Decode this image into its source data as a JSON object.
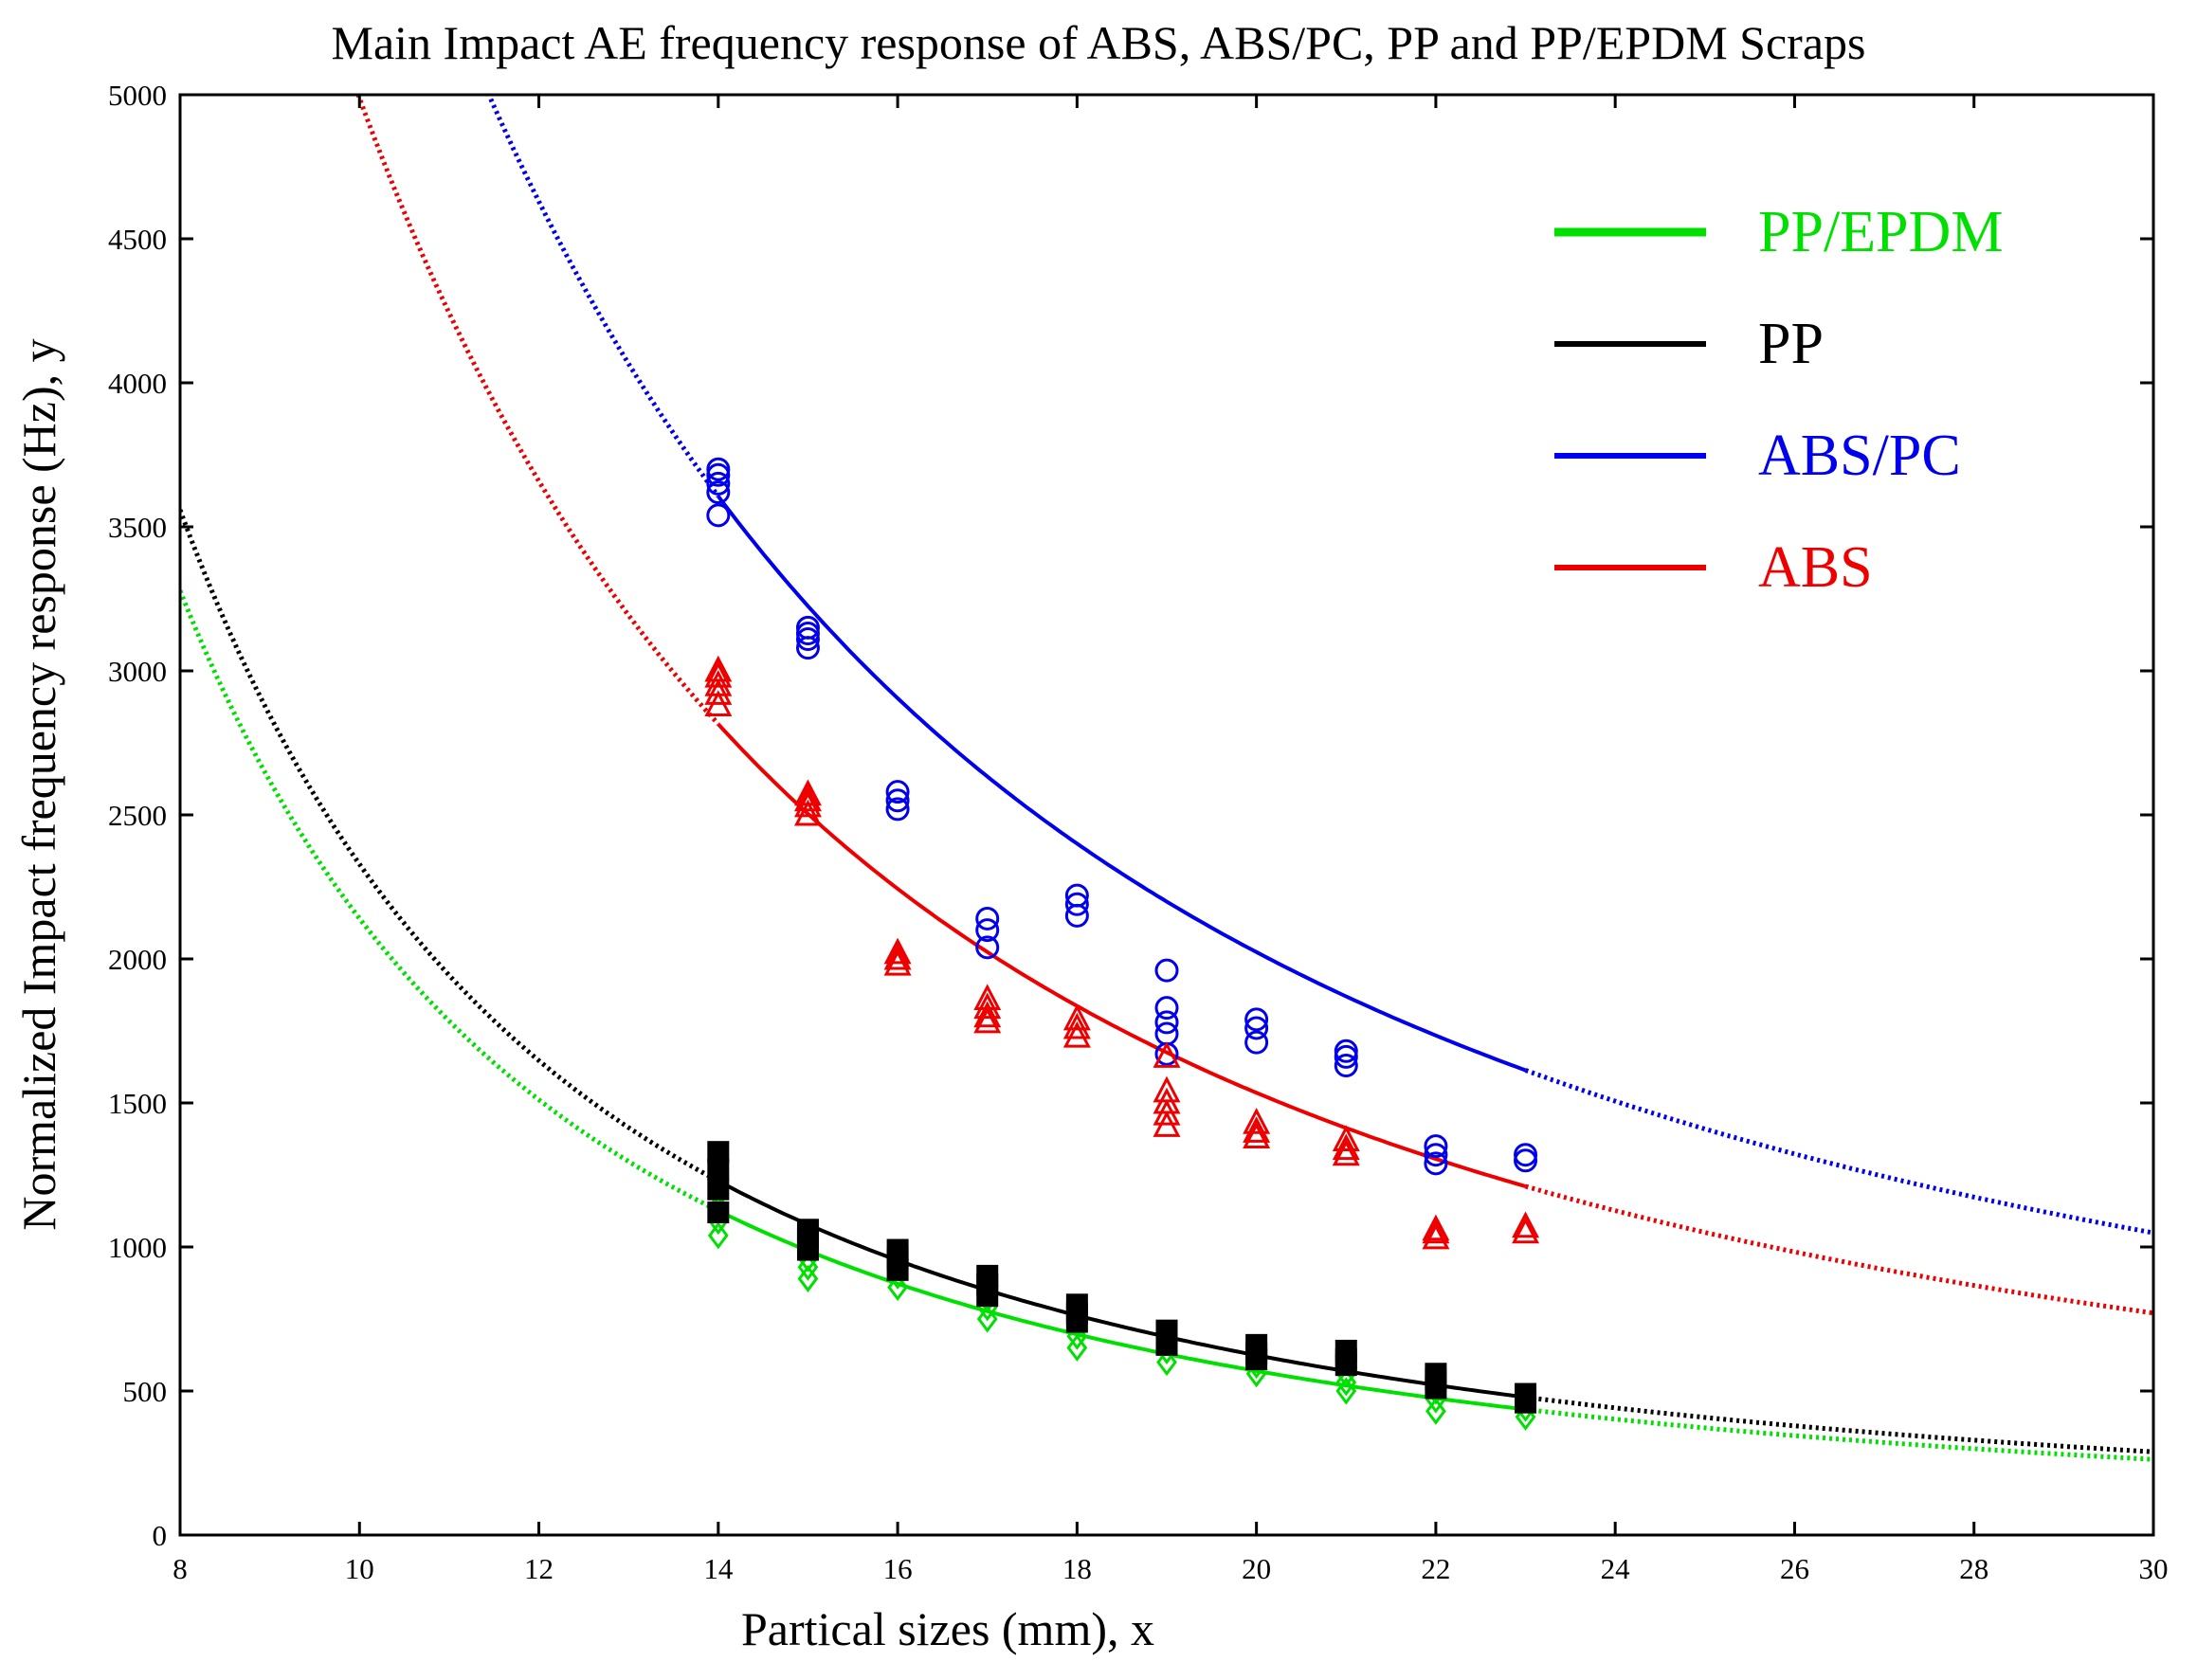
{
  "chart_data": {
    "type": "scatter",
    "title": "Main Impact AE frequency response of ABS, ABS/PC, PP and PP/EPDM Scraps",
    "xlabel": "Partical sizes (mm), x",
    "ylabel": "Normalized Impact frequency response (Hz), y",
    "xlim": [
      8,
      30
    ],
    "ylim": [
      0,
      5000
    ],
    "xticks": [
      8,
      10,
      12,
      14,
      16,
      18,
      20,
      22,
      24,
      26,
      28,
      30
    ],
    "yticks": [
      0,
      500,
      1000,
      1500,
      2000,
      2500,
      3000,
      3500,
      4000,
      4500,
      5000
    ],
    "xtick_labels": [
      "8",
      "10",
      "12",
      "14",
      "16",
      "18",
      "20",
      "22",
      "24",
      "26",
      "28",
      "30"
    ],
    "ytick_labels": [
      "0",
      "500",
      "1000",
      "1500",
      "2000",
      "2500",
      "3000",
      "3500",
      "4000",
      "4500",
      "5000"
    ],
    "legend_position": "top-right",
    "fit_range": [
      14,
      23
    ],
    "series": [
      {
        "name": "PP/EPDM",
        "color": "#00e000",
        "marker": "diamond",
        "fit": {
          "a": 174000,
          "b": 1.91
        },
        "x": [
          14,
          14,
          14,
          14,
          14,
          14,
          15,
          15,
          15,
          15,
          16,
          16,
          16,
          17,
          17,
          17,
          18,
          18,
          18,
          19,
          19,
          19,
          20,
          20,
          20,
          21,
          21,
          21,
          22,
          22,
          22,
          23,
          23
        ],
        "y": [
          1040,
          1090,
          1140,
          1190,
          1230,
          1260,
          890,
          930,
          960,
          1000,
          860,
          900,
          930,
          750,
          790,
          820,
          650,
          690,
          730,
          600,
          640,
          670,
          560,
          590,
          610,
          500,
          530,
          560,
          430,
          470,
          500,
          410,
          440
        ]
      },
      {
        "name": "PP",
        "color": "#000000",
        "marker": "square",
        "fit": {
          "a": 185000,
          "b": 1.9
        },
        "x": [
          14,
          14,
          14,
          14,
          15,
          15,
          15,
          16,
          16,
          16,
          17,
          17,
          17,
          18,
          18,
          18,
          19,
          19,
          19,
          20,
          20,
          20,
          21,
          21,
          21,
          22,
          22,
          22,
          23,
          23
        ],
        "y": [
          1120,
          1200,
          1270,
          1330,
          990,
          1030,
          1060,
          920,
          960,
          990,
          830,
          870,
          900,
          740,
          770,
          800,
          660,
          680,
          710,
          610,
          630,
          660,
          590,
          610,
          640,
          510,
          540,
          560,
          460,
          490
        ],
        "point_color": "#000000"
      },
      {
        "name": "ABS/PC",
        "color": "#0000ee",
        "marker": "circle",
        "fit": {
          "a": 259300,
          "b": 1.62
        },
        "x": [
          14,
          14,
          14,
          14,
          14,
          15,
          15,
          15,
          15,
          16,
          16,
          16,
          17,
          17,
          17,
          18,
          18,
          18,
          19,
          19,
          19,
          19,
          19,
          20,
          20,
          20,
          21,
          21,
          21,
          22,
          22,
          22,
          23,
          23
        ],
        "y": [
          3540,
          3620,
          3650,
          3680,
          3700,
          3080,
          3110,
          3130,
          3150,
          2520,
          2550,
          2580,
          2040,
          2100,
          2140,
          2150,
          2190,
          2220,
          1670,
          1740,
          1780,
          1830,
          1960,
          1710,
          1760,
          1790,
          1630,
          1660,
          1680,
          1290,
          1320,
          1350,
          1300,
          1320
        ]
      },
      {
        "name": "ABS",
        "color": "#ee0000",
        "marker": "triangle",
        "fit": {
          "a": 250000,
          "b": 1.7
        },
        "x": [
          14,
          14,
          14,
          14,
          14,
          15,
          15,
          15,
          15,
          16,
          16,
          16,
          17,
          17,
          17,
          17,
          18,
          18,
          18,
          19,
          19,
          19,
          19,
          19,
          20,
          20,
          20,
          21,
          21,
          21,
          22,
          22,
          22,
          23,
          23
        ],
        "y": [
          2880,
          2920,
          2950,
          2980,
          3000,
          2500,
          2530,
          2550,
          2570,
          1980,
          2000,
          2020,
          1780,
          1800,
          1830,
          1860,
          1730,
          1760,
          1790,
          1420,
          1460,
          1500,
          1540,
          1660,
          1380,
          1400,
          1430,
          1320,
          1340,
          1370,
          1030,
          1050,
          1060,
          1050,
          1070
        ]
      }
    ]
  }
}
